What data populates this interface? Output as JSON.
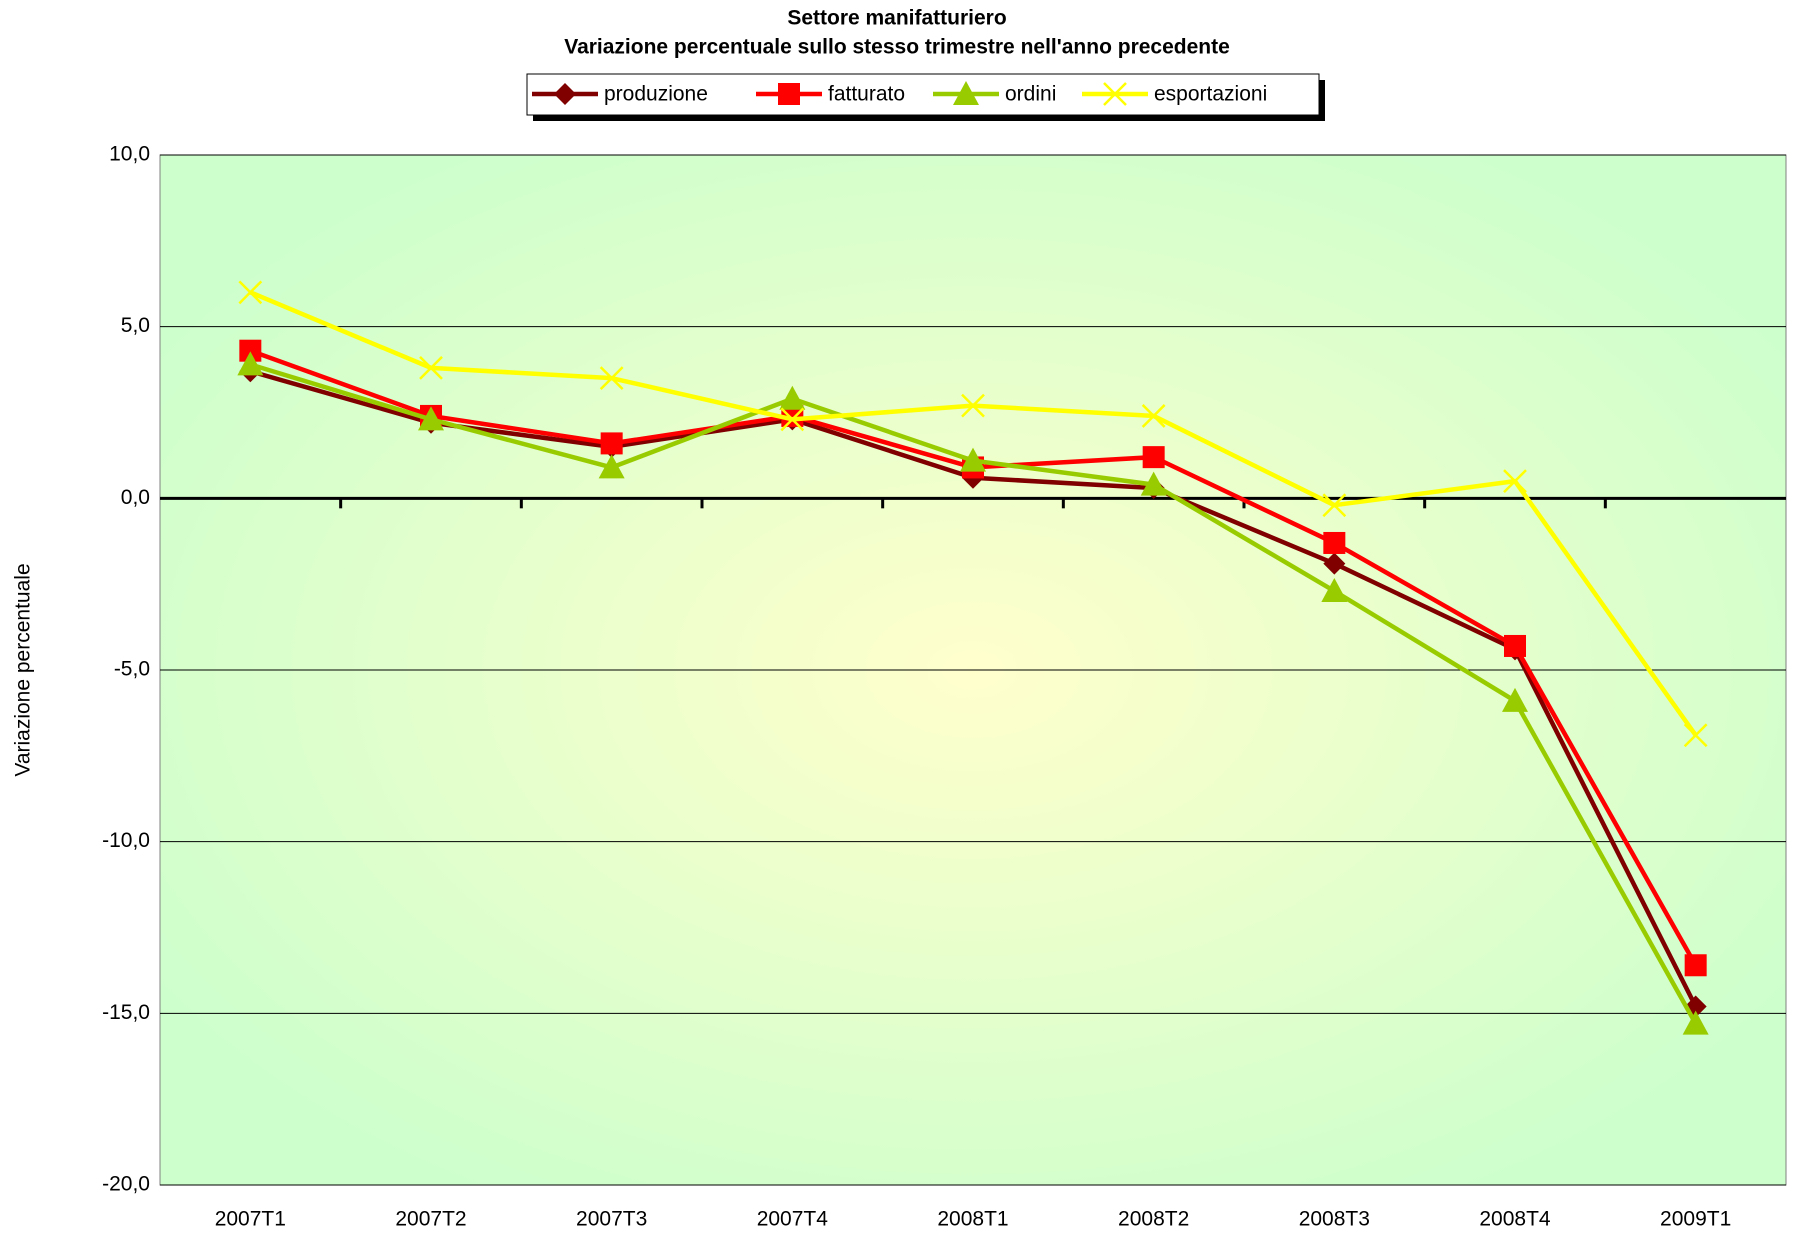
{
  "chart_data": {
    "type": "line",
    "title": "Settore manifatturiero",
    "subtitle": "Variazione percentuale sullo stesso trimestre nell'anno precedente",
    "y_label": "Variazione percentuale",
    "categories": [
      "2007T1",
      "2007T2",
      "2007T3",
      "2007T4",
      "2008T1",
      "2008T2",
      "2008T3",
      "2008T4",
      "2009T1"
    ],
    "series": [
      {
        "name": "produzione",
        "color": "#800000",
        "marker": "diamond",
        "values": [
          3.7,
          2.2,
          1.5,
          2.3,
          0.6,
          0.3,
          -1.9,
          -4.4,
          -14.8
        ]
      },
      {
        "name": "fatturato",
        "color": "#ff0000",
        "marker": "square",
        "values": [
          4.3,
          2.4,
          1.6,
          2.4,
          0.9,
          1.2,
          -1.3,
          -4.3,
          -13.6
        ]
      },
      {
        "name": "ordini",
        "color": "#99cc00",
        "marker": "triangle",
        "values": [
          3.9,
          2.3,
          0.9,
          2.9,
          1.1,
          0.4,
          -2.7,
          -5.9,
          -15.3
        ]
      },
      {
        "name": "esportazioni",
        "color": "#ffff00",
        "marker": "x",
        "values": [
          6.0,
          3.8,
          3.5,
          2.3,
          2.7,
          2.4,
          -0.2,
          0.5,
          -6.9
        ]
      }
    ],
    "ylim": [
      -20,
      10
    ],
    "yticks": [
      {
        "value": -20,
        "label": "-20,0"
      },
      {
        "value": -15,
        "label": "-15,0"
      },
      {
        "value": -10,
        "label": "-10,0"
      },
      {
        "value": -5,
        "label": "-5,0"
      },
      {
        "value": 0,
        "label": "0,0"
      },
      {
        "value": 5,
        "label": "5,0"
      },
      {
        "value": 10,
        "label": "10,0"
      }
    ],
    "grid": true,
    "legend": "top"
  }
}
